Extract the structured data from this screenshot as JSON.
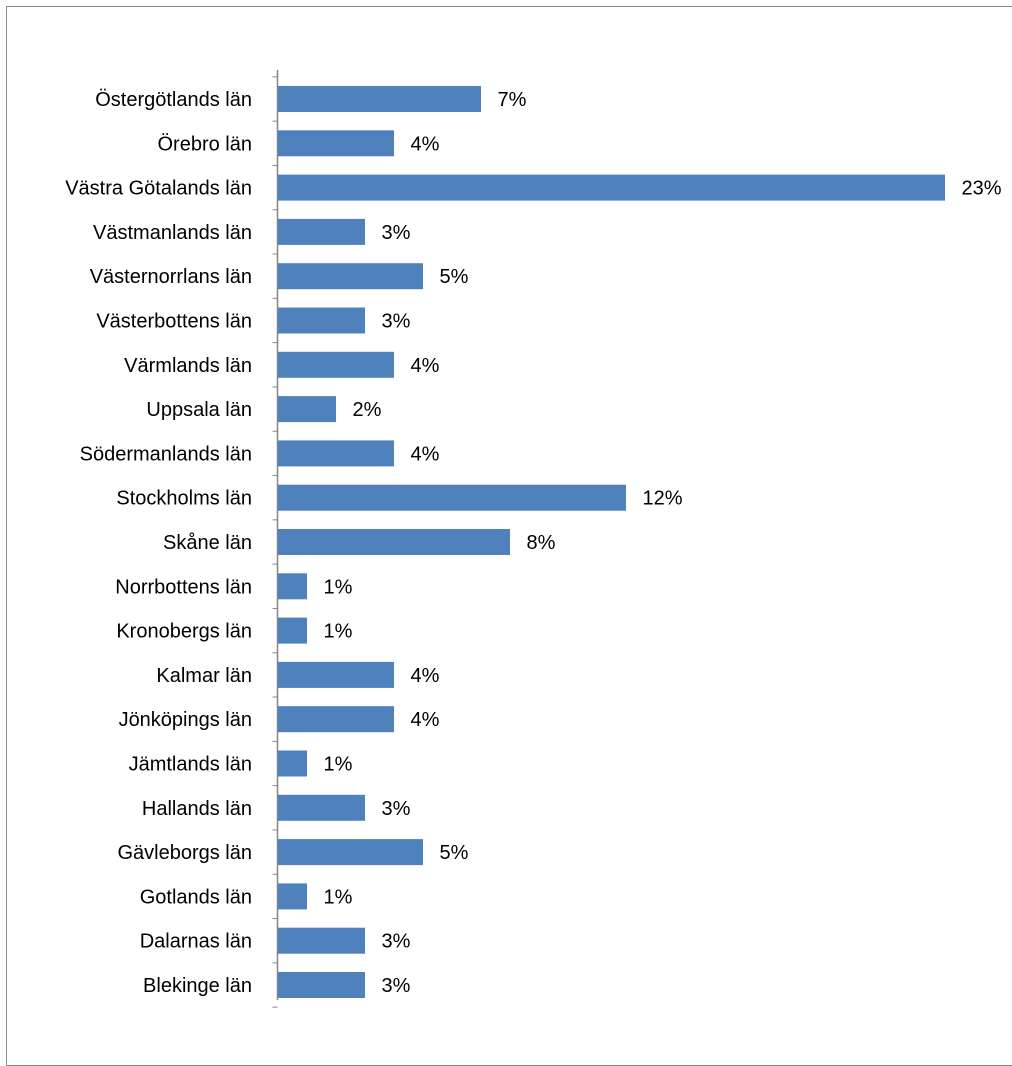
{
  "chart_data": {
    "type": "bar",
    "orientation": "horizontal",
    "categories": [
      "Östergötlands län",
      "Örebro län",
      "Västra Götalands län",
      "Västmanlands län",
      "Västernorrlans län",
      "Västerbottens län",
      "Värmlands län",
      "Uppsala län",
      "Södermanlands län",
      "Stockholms län",
      "Skåne län",
      "Norrbottens län",
      "Kronobergs län",
      "Kalmar län",
      "Jönköpings län",
      "Jämtlands län",
      "Hallands län",
      "Gävleborgs län",
      "Gotlands län",
      "Dalarnas län",
      "Blekinge län"
    ],
    "values": [
      7,
      4,
      23,
      3,
      5,
      3,
      4,
      2,
      4,
      12,
      8,
      1,
      1,
      4,
      4,
      1,
      3,
      5,
      1,
      3,
      3
    ],
    "value_labels": [
      "7%",
      "4%",
      "23%",
      "3%",
      "5%",
      "3%",
      "4%",
      "2%",
      "4%",
      "12%",
      "8%",
      "1%",
      "1%",
      "4%",
      "4%",
      "1%",
      "3%",
      "5%",
      "1%",
      "3%",
      "3%"
    ],
    "title": "",
    "xlabel": "",
    "ylabel": "",
    "xlim": [
      0,
      23
    ],
    "grid": false,
    "legend": "none",
    "bar_color": "#4f81bd",
    "axis_color": "#868686"
  }
}
